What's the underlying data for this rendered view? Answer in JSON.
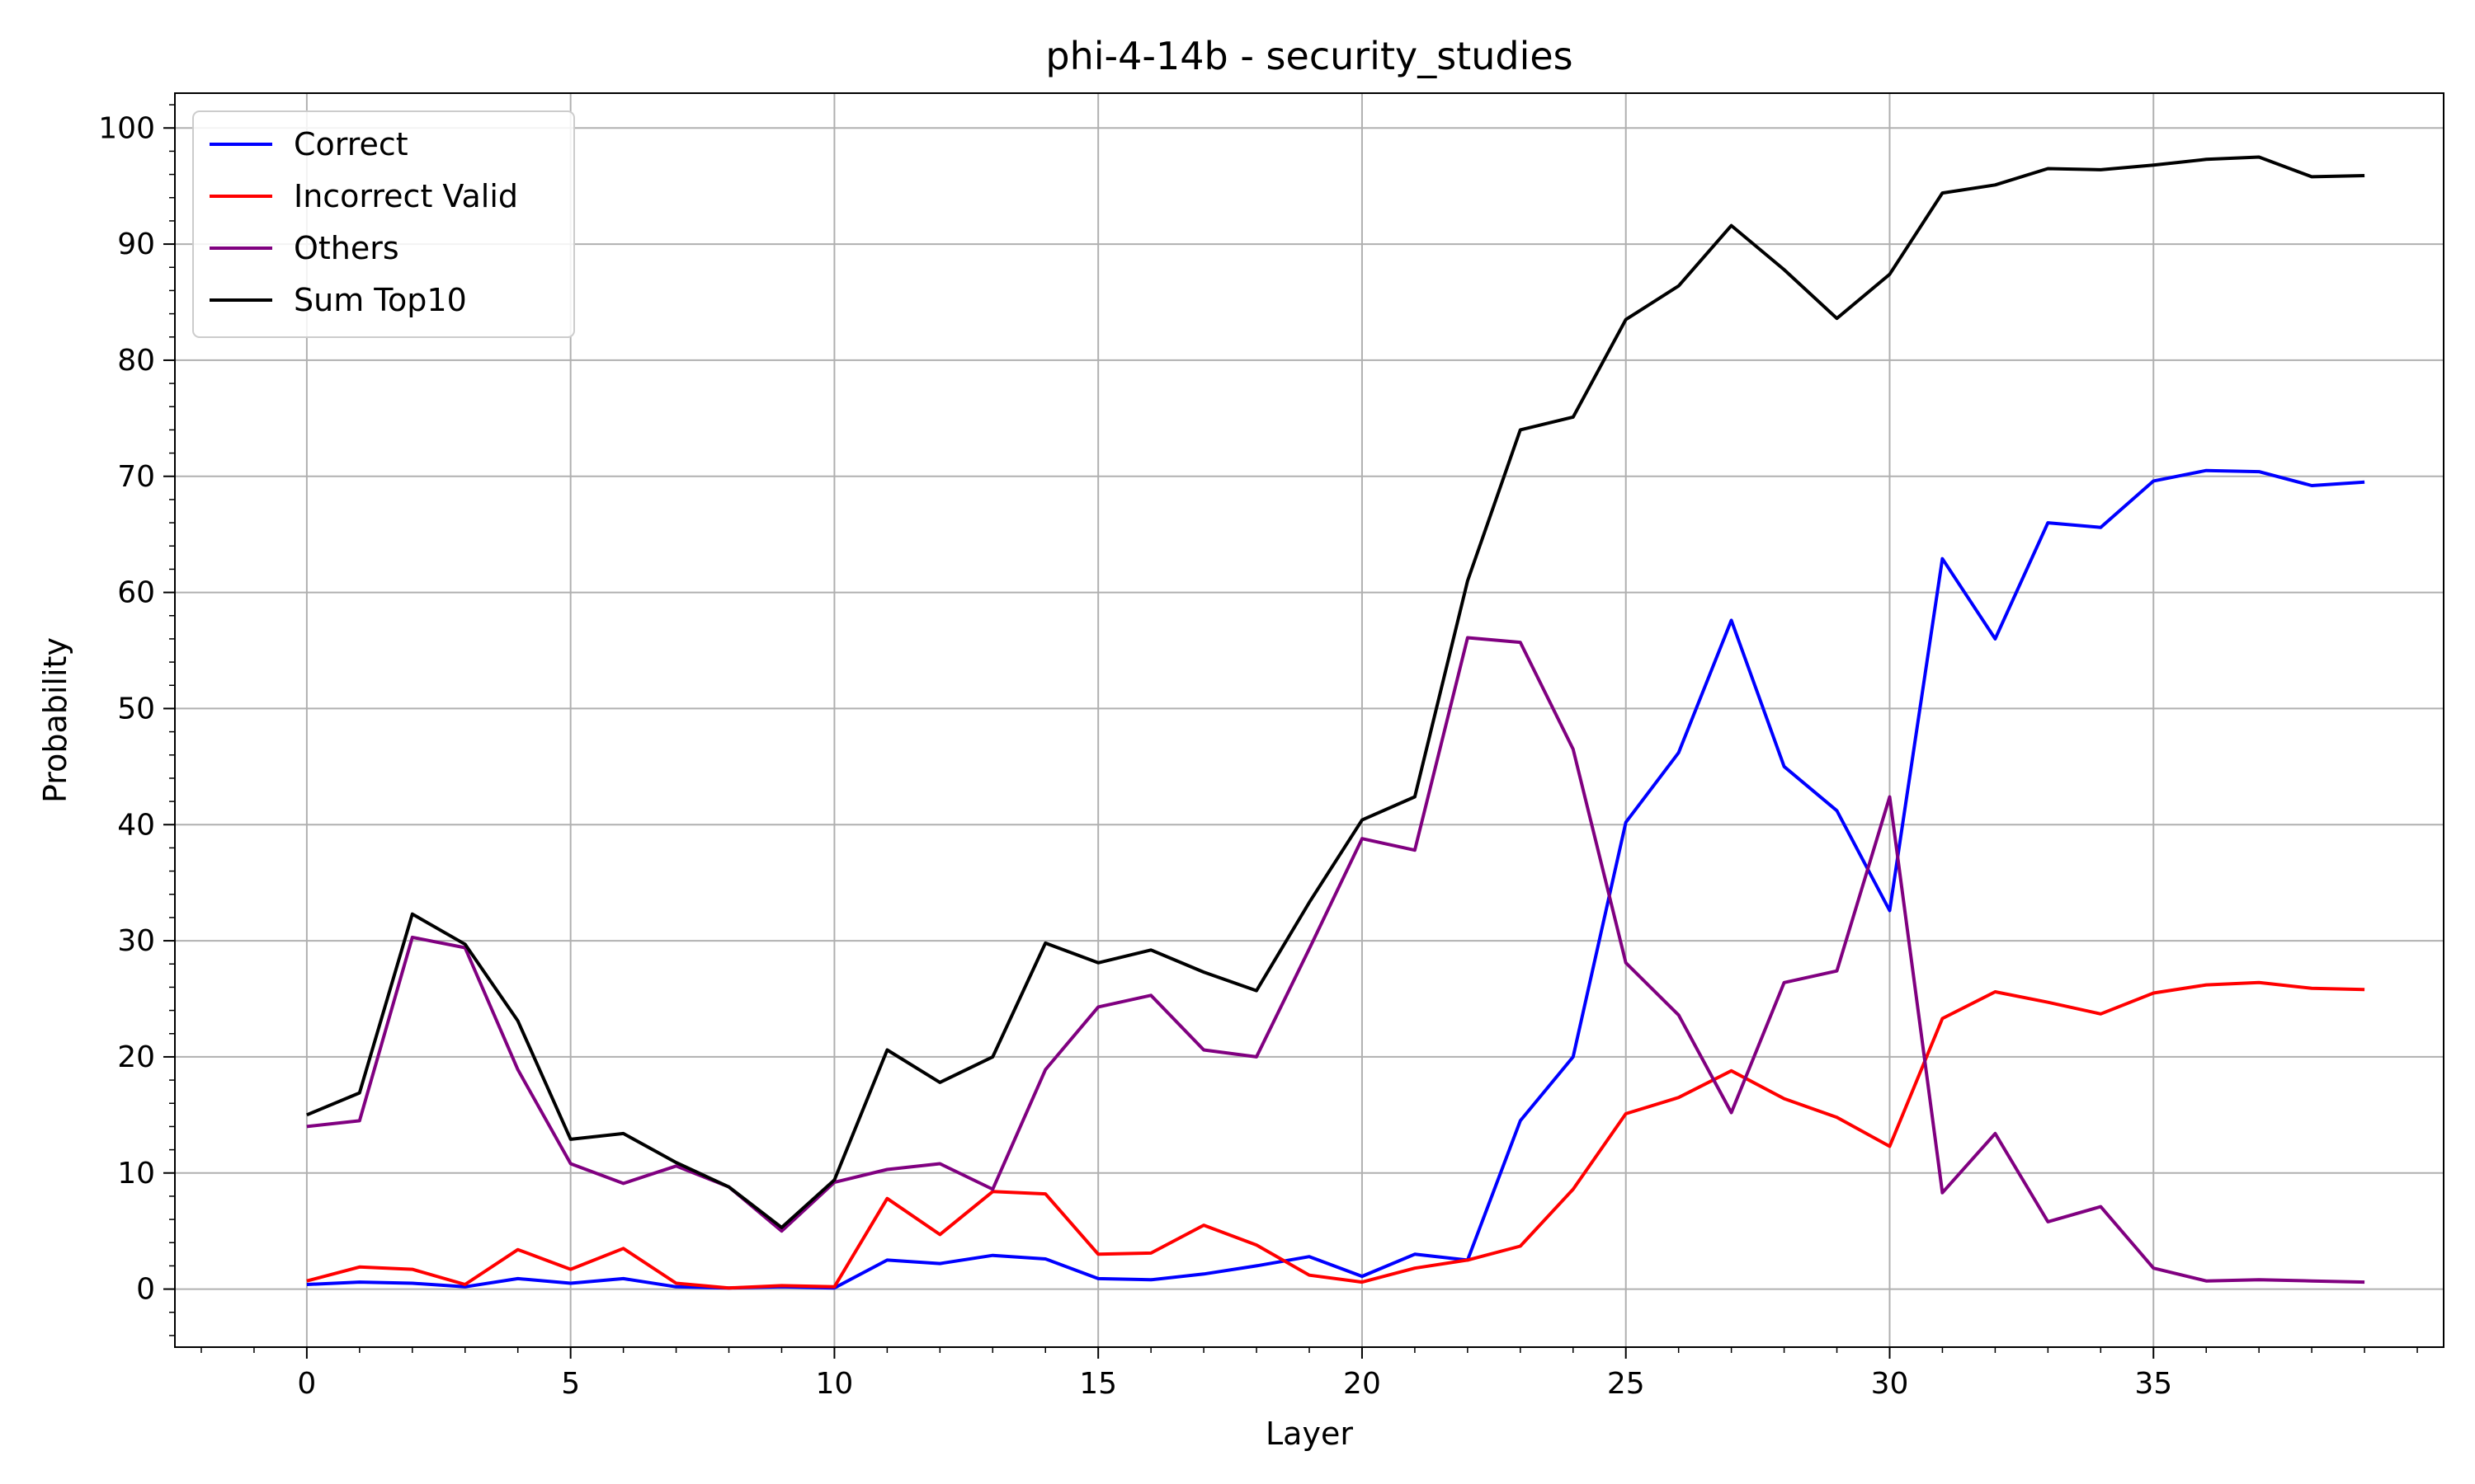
{
  "chart_data": {
    "type": "line",
    "title": "phi-4-14b - security_studies",
    "xlabel": "Layer",
    "ylabel": "Probability",
    "xlim": [
      -2.5,
      40.5
    ],
    "ylim": [
      -5,
      103
    ],
    "xticks": [
      0,
      5,
      10,
      15,
      20,
      25,
      30,
      35
    ],
    "yticks": [
      0,
      10,
      20,
      30,
      40,
      50,
      60,
      70,
      80,
      90,
      100
    ],
    "grid": true,
    "legend_position": "top-left",
    "x": [
      0,
      1,
      2,
      3,
      4,
      5,
      6,
      7,
      8,
      9,
      10,
      11,
      12,
      13,
      14,
      15,
      16,
      17,
      18,
      19,
      20,
      21,
      22,
      23,
      24,
      25,
      26,
      27,
      28,
      29,
      30,
      31,
      32,
      33,
      34,
      35,
      36,
      37,
      38,
      39
    ],
    "series": [
      {
        "name": "Correct",
        "color": "#0000ff",
        "values": [
          0.4,
          0.6,
          0.5,
          0.2,
          0.9,
          0.5,
          0.9,
          0.2,
          0.1,
          0.2,
          0.1,
          2.5,
          2.2,
          2.9,
          2.6,
          0.9,
          0.8,
          1.3,
          2.0,
          2.8,
          1.1,
          3.0,
          2.5,
          14.5,
          20.0,
          40.2,
          46.2,
          57.6,
          45.0,
          41.2,
          32.6,
          62.9,
          56.0,
          66.0,
          65.6,
          69.6,
          70.5,
          70.4,
          69.2,
          69.5
        ]
      },
      {
        "name": "Incorrect Valid",
        "color": "#ff0000",
        "values": [
          0.7,
          1.9,
          1.7,
          0.4,
          3.4,
          1.7,
          3.5,
          0.5,
          0.1,
          0.3,
          0.2,
          7.8,
          4.7,
          8.4,
          8.2,
          3.0,
          3.1,
          5.5,
          3.8,
          1.2,
          0.6,
          1.8,
          2.5,
          3.7,
          8.6,
          15.1,
          16.5,
          18.8,
          16.4,
          14.8,
          12.3,
          23.3,
          25.6,
          24.7,
          23.7,
          25.5,
          26.2,
          26.4,
          25.9,
          25.8
        ]
      },
      {
        "name": "Others",
        "color": "#800080",
        "values": [
          14.0,
          14.5,
          30.3,
          29.4,
          18.9,
          10.8,
          9.1,
          10.6,
          8.8,
          5.0,
          9.2,
          10.3,
          10.8,
          8.6,
          18.9,
          24.3,
          25.3,
          20.6,
          20.0,
          29.3,
          38.8,
          37.8,
          56.1,
          55.7,
          46.5,
          28.1,
          23.6,
          15.2,
          26.4,
          27.4,
          42.4,
          8.3,
          13.4,
          5.8,
          7.1,
          1.8,
          0.7,
          0.8,
          0.7,
          0.6
        ]
      },
      {
        "name": "Sum Top10",
        "color": "#000000",
        "values": [
          15.0,
          16.9,
          32.3,
          29.7,
          23.1,
          12.9,
          13.4,
          10.9,
          8.8,
          5.3,
          9.4,
          20.6,
          17.8,
          20.0,
          29.8,
          28.1,
          29.2,
          27.3,
          25.7,
          33.3,
          40.4,
          42.4,
          61.0,
          74.0,
          75.1,
          83.5,
          86.4,
          91.6,
          87.8,
          83.6,
          87.4,
          94.4,
          95.1,
          96.5,
          96.4,
          96.8,
          97.3,
          97.5,
          95.8,
          95.9
        ]
      }
    ]
  }
}
